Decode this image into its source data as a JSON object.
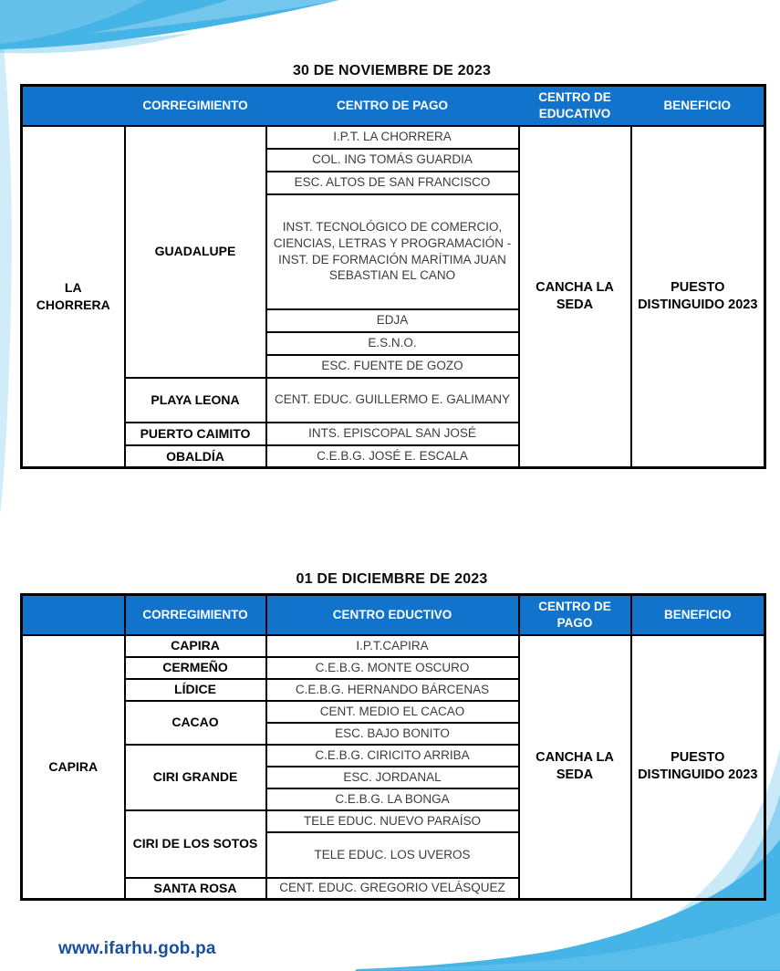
{
  "footer": {
    "url": "www.ifarhu.gob.pa"
  },
  "colors": {
    "header_blue": "#1173CB",
    "accent_cyan": "#45B4E6",
    "footer_blue": "#17509F"
  },
  "tables": [
    {
      "title": "30 DE NOVIEMBRE DE 2023",
      "headers": [
        "",
        "CORREGIMIENTO",
        "CENTRO DE PAGO",
        "CENTRO DE EDUCATIVO",
        "BENEFICIO"
      ],
      "region": "LA CHORRERA",
      "payment_center": "CANCHA LA SEDA",
      "benefit": "PUESTO DISTINGUIDO 2023",
      "groups": [
        {
          "corregimiento": "GUADALUPE",
          "schools": [
            "I.P.T. LA CHORRERA",
            "COL. ING TOMÁS GUARDIA",
            "ESC. ALTOS DE SAN FRANCISCO",
            "INST. TECNOLÓGICO DE COMERCIO, CIENCIAS, LETRAS Y PROGRAMACIÓN -INST. DE FORMACIÓN MARÍTIMA JUAN SEBASTIAN EL CANO",
            "EDJA",
            "E.S.N.O.",
            "ESC. FUENTE DE GOZO"
          ]
        },
        {
          "corregimiento": "PLAYA LEONA",
          "schools": [
            "CENT. EDUC. GUILLERMO E. GALIMANY"
          ]
        },
        {
          "corregimiento": "PUERTO CAIMITO",
          "schools": [
            "INTS. EPISCOPAL SAN JOSÉ"
          ]
        },
        {
          "corregimiento": "OBALDÍA",
          "schools": [
            "C.E.B.G. JOSÉ E. ESCALA"
          ]
        }
      ]
    },
    {
      "title": "01 DE DICIEMBRE DE 2023",
      "headers": [
        "",
        "CORREGIMIENTO",
        "CENTRO EDUCTIVO",
        "CENTRO DE PAGO",
        "BENEFICIO"
      ],
      "region": "CAPIRA",
      "payment_center": "CANCHA LA SEDA",
      "benefit": "PUESTO DISTINGUIDO 2023",
      "groups": [
        {
          "corregimiento": "CAPIRA",
          "schools": [
            "I.P.T.CAPIRA"
          ]
        },
        {
          "corregimiento": "CERMEÑO",
          "schools": [
            "C.E.B.G. MONTE OSCURO"
          ]
        },
        {
          "corregimiento": "LÍDICE",
          "schools": [
            "C.E.B.G. HERNANDO BÁRCENAS"
          ]
        },
        {
          "corregimiento": "CACAO",
          "schools": [
            "CENT. MEDIO EL CACAO",
            "ESC. BAJO BONITO"
          ]
        },
        {
          "corregimiento": "CIRI GRANDE",
          "schools": [
            "C.E.B.G. CIRICITO ARRIBA",
            "ESC. JORDANAL",
            "C.E.B.G. LA BONGA"
          ]
        },
        {
          "corregimiento": "CIRI DE LOS SOTOS",
          "schools": [
            "TELE EDUC. NUEVO PARAÍSO",
            "TELE EDUC. LOS UVEROS"
          ]
        },
        {
          "corregimiento": "SANTA ROSA",
          "schools": [
            "CENT. EDUC. GREGORIO VELÁSQUEZ"
          ]
        }
      ]
    }
  ]
}
